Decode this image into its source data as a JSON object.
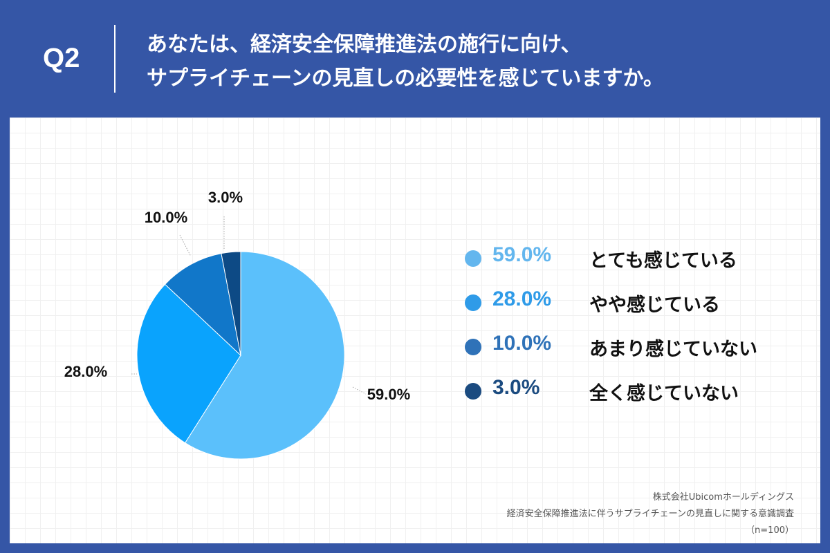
{
  "header": {
    "q_label": "Q2",
    "title_line1": "あなたは、経済安全保障推進法の施行に向け、",
    "title_line2": "サプライチェーンの見直しの必要性を感じていますか。"
  },
  "chart_data": {
    "type": "pie",
    "start_angle_deg": 0,
    "direction": "clockwise",
    "slices": [
      {
        "label": "とても感じている",
        "value": 59.0,
        "value_label": "59.0%",
        "color": "#5bc0fb",
        "legend_color": "#63b6ee"
      },
      {
        "label": "やや感じている",
        "value": 28.0,
        "value_label": "28.0%",
        "color": "#0aa3fd",
        "legend_color": "#2f9be8"
      },
      {
        "label": "あまり感じていない",
        "value": 10.0,
        "value_label": "10.0%",
        "color": "#1177c9",
        "legend_color": "#2f72b8"
      },
      {
        "label": "全く感じていない",
        "value": 3.0,
        "value_label": "3.0%",
        "color": "#0d4a85",
        "legend_color": "#1b4b80"
      }
    ]
  },
  "source": {
    "line1": "株式会社Ubicomホールディングス",
    "line2": "経済安全保障推進法に伴うサプライチェーンの見直しに関する意識調査",
    "line3": "（n=100）"
  }
}
